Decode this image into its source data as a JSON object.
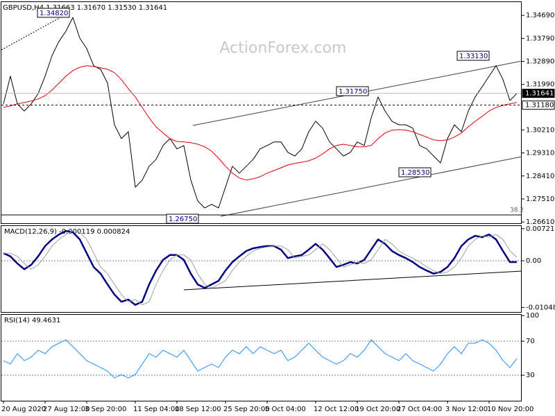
{
  "chart_data": [
    {
      "type": "line",
      "title": "GBPUSD,H4  1.31663 1.31670 1.31530 1.31641",
      "watermark": "ActionForex.com",
      "ylim": [
        1.2656,
        1.3521
      ],
      "yticks": [
        {
          "value": 1.3469,
          "label": "1.34690"
        },
        {
          "value": 1.3379,
          "label": "1.33790"
        },
        {
          "value": 1.3289,
          "label": "1.32890"
        },
        {
          "value": 1.3199,
          "label": "1.31990"
        },
        {
          "value": 1.3021,
          "label": "1.30210"
        },
        {
          "value": 1.2931,
          "label": "1.29310"
        },
        {
          "value": 1.2841,
          "label": "1.28410"
        },
        {
          "value": 1.2751,
          "label": "1.27510"
        },
        {
          "value": 1.2661,
          "label": "1.26610"
        }
      ],
      "price_markers": [
        1.31641,
        {
          "value": 1.3118,
          "label": "1.31180"
        }
      ],
      "annotations": [
        "1.34820",
        "1.33130",
        "1.31750",
        "1.28530",
        "1.26750",
        "38.2"
      ],
      "series": [
        {
          "color": "#000000",
          "values": [
            1.3123,
            1.3231,
            1.3123,
            1.3095,
            1.3123,
            1.3163,
            1.3231,
            1.3312,
            1.3367,
            1.3407,
            1.3461,
            1.338,
            1.3339,
            1.3272,
            1.3258,
            1.3204,
            1.3041,
            1.2987,
            1.3014,
            1.2797,
            1.2825,
            1.2879,
            1.2906,
            1.296,
            1.2987,
            1.2947,
            1.296,
            1.2825,
            1.2743,
            1.2716,
            1.273,
            1.2716,
            1.2797,
            1.2879,
            1.2852,
            1.2879,
            1.2906,
            1.2947,
            1.296,
            1.2974,
            1.2974,
            1.2933,
            1.2919,
            1.2947,
            1.3014,
            1.3055,
            1.3028,
            1.2974,
            1.2947,
            1.2919,
            1.2933,
            1.2974,
            1.296,
            1.3068,
            1.315,
            1.3095,
            1.3055,
            1.3041,
            1.3041,
            1.3028,
            1.296,
            1.2947,
            1.2919,
            1.2892,
            1.2987,
            1.3041,
            1.3014,
            1.3095,
            1.315,
            1.319,
            1.3231,
            1.3272,
            1.3218,
            1.3136,
            1.3164
          ]
        },
        {
          "color": "#e00000",
          "values": [
            1.3109,
            1.3115,
            1.3123,
            1.3128,
            1.3134,
            1.3142,
            1.3155,
            1.3177,
            1.3204,
            1.3231,
            1.3253,
            1.3266,
            1.3272,
            1.3269,
            1.3264,
            1.3258,
            1.3245,
            1.3218,
            1.3182,
            1.315,
            1.3109,
            1.3068,
            1.3033,
            1.3009,
            1.2987,
            1.2976,
            1.2974,
            1.2971,
            1.2965,
            1.2955,
            1.2938,
            1.2911,
            1.2879,
            1.2852,
            1.2833,
            1.2825,
            1.283,
            1.2838,
            1.2852,
            1.2862,
            1.2873,
            1.2884,
            1.289,
            1.2895,
            1.29,
            1.2911,
            1.2927,
            1.2947,
            1.296,
            1.2965,
            1.296,
            1.2955,
            1.2955,
            1.296,
            1.2987,
            1.3009,
            1.302,
            1.3022,
            1.302,
            1.3014,
            1.3003,
            1.2993,
            1.2982,
            1.2979,
            1.2982,
            1.2993,
            1.3009,
            1.3033,
            1.3055,
            1.3074,
            1.3095,
            1.3109,
            1.3117,
            1.3123,
            1.3128
          ]
        }
      ]
    },
    {
      "type": "line",
      "title": "MACD(12,26,9) -0.000119 0.000824",
      "ylim": [
        -0.0115,
        0.0078
      ],
      "yticks": [
        0.007213,
        {
          "value": 0,
          "label": "0.00"
        },
        -0.01048
      ],
      "reference_lines": [
        0
      ],
      "series": [
        {
          "color": "#000080",
          "values": [
            0.0017,
            0.001,
            -0.0006,
            -0.0019,
            -0.0009,
            0.001,
            0.0033,
            0.0048,
            0.0059,
            0.0067,
            0.0064,
            0.0048,
            0.0017,
            -0.0014,
            -0.0029,
            -0.0053,
            -0.0076,
            -0.0092,
            -0.0087,
            -0.0099,
            -0.0092,
            -0.0053,
            -0.0022,
            0.0002,
            0.0013,
            0.0013,
            0.0002,
            -0.0029,
            -0.0053,
            -0.0061,
            -0.0053,
            -0.0045,
            -0.0022,
            -0.0003,
            0.001,
            0.0022,
            0.0028,
            0.0031,
            0.0033,
            0.0033,
            0.0025,
            0.0006,
            0.001,
            0.0013,
            0.0025,
            0.0038,
            0.0025,
            0.0006,
            -0.0014,
            -0.0009,
            -0.0003,
            -0.0006,
            0.0002,
            0.0025,
            0.0048,
            0.0038,
            0.0022,
            0.0013,
            0.0006,
            -0.0003,
            -0.0014,
            -0.0022,
            -0.0029,
            -0.0025,
            -0.0014,
            0.0006,
            0.0033,
            0.0048,
            0.0056,
            0.0053,
            0.0059,
            0.0048,
            0.0022,
            -0.0003,
            -0.0003
          ]
        },
        {
          "color": "#a0a0a0",
          "values": [
            0.0017,
            0.0017,
            0.001,
            -0.0006,
            -0.0019,
            -0.0009,
            0.001,
            0.0033,
            0.0048,
            0.0059,
            0.0067,
            0.0064,
            0.0048,
            0.0017,
            -0.0014,
            -0.0029,
            -0.0053,
            -0.0076,
            -0.0092,
            -0.0087,
            -0.0099,
            -0.0092,
            -0.0053,
            -0.0022,
            0.0002,
            0.0013,
            0.0013,
            0.0002,
            -0.0029,
            -0.0053,
            -0.0061,
            -0.0053,
            -0.0045,
            -0.0022,
            -0.0003,
            0.001,
            0.0022,
            0.0028,
            0.0031,
            0.0033,
            0.0033,
            0.0025,
            0.0006,
            0.001,
            0.0013,
            0.0025,
            0.0038,
            0.0025,
            0.0006,
            -0.0014,
            -0.0009,
            -0.0003,
            -0.0006,
            0.0002,
            0.0025,
            0.0048,
            0.0038,
            0.0022,
            0.0013,
            0.0006,
            -0.0003,
            -0.0014,
            -0.0022,
            -0.0029,
            -0.0025,
            -0.0014,
            0.0006,
            0.0033,
            0.0048,
            0.0056,
            0.0053,
            0.0059,
            0.0048,
            0.0022,
            0.0008
          ]
        }
      ]
    },
    {
      "type": "line",
      "title": "RSI(14) 49.4631",
      "ylim": [
        0,
        101
      ],
      "yticks": [
        100,
        70,
        30
      ],
      "reference_lines": [
        70,
        30
      ],
      "categories": [
        "20 Aug 2020",
        null,
        null,
        null,
        null,
        null,
        "27 Aug 12:00",
        null,
        null,
        null,
        null,
        null,
        "3 Sep 20:00",
        null,
        null,
        null,
        null,
        null,
        null,
        "11 Sep 04:00",
        null,
        null,
        null,
        null,
        null,
        "18 Sep 12:00",
        null,
        null,
        null,
        null,
        null,
        null,
        "25 Sep 20:00",
        null,
        null,
        null,
        null,
        null,
        "5 Oct 04:00",
        null,
        null,
        null,
        null,
        null,
        null,
        "12 Oct 12:00",
        null,
        null,
        null,
        null,
        null,
        "19 Oct 20:00",
        null,
        null,
        null,
        null,
        null,
        "27 Oct 04:00",
        null,
        null,
        null,
        null,
        null,
        null,
        "3 Nov 12:00",
        null,
        null,
        null,
        null,
        null,
        "10 Nov 20:00",
        null,
        null,
        null,
        null
      ],
      "series": [
        {
          "color": "#1e90ff",
          "values": [
            47.1,
            43.1,
            55.3,
            47.1,
            51.2,
            59.4,
            55.3,
            63.5,
            67.6,
            71.6,
            63.5,
            55.3,
            47.1,
            43.1,
            39.0,
            34.9,
            26.7,
            30.8,
            26.7,
            30.8,
            43.1,
            55.3,
            51.2,
            59.4,
            55.3,
            51.2,
            59.4,
            47.1,
            34.9,
            39.0,
            43.1,
            39.0,
            51.2,
            59.4,
            55.3,
            63.5,
            55.3,
            63.5,
            59.4,
            55.3,
            59.4,
            47.1,
            51.2,
            59.4,
            67.6,
            59.4,
            51.2,
            47.1,
            43.1,
            47.1,
            55.3,
            51.2,
            59.4,
            71.6,
            63.5,
            55.3,
            51.2,
            47.1,
            55.3,
            47.1,
            43.1,
            39.0,
            34.9,
            43.1,
            55.3,
            63.5,
            55.3,
            67.6,
            67.6,
            71.6,
            67.6,
            59.4,
            47.1,
            39.0,
            49.5
          ]
        }
      ]
    }
  ]
}
